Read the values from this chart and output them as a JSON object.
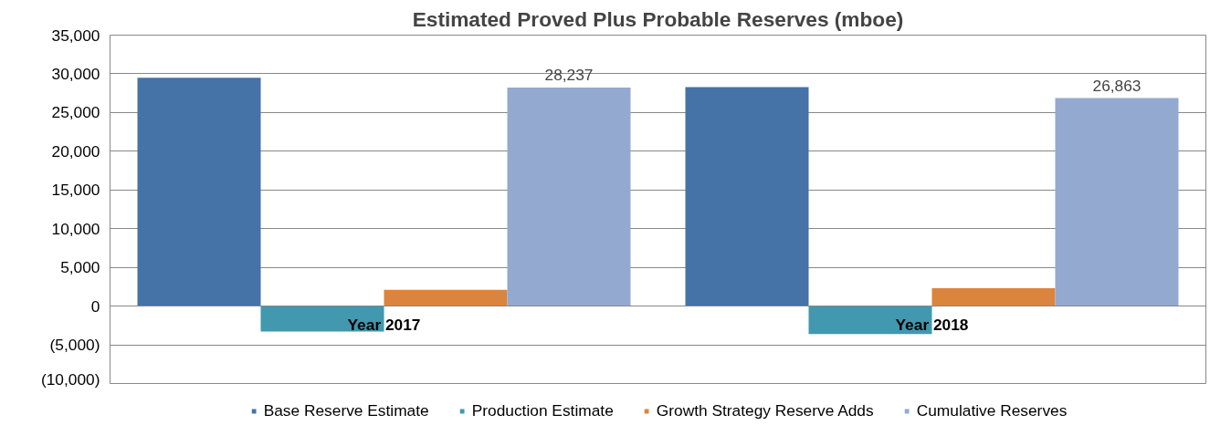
{
  "chart_data": {
    "type": "bar",
    "title": "Estimated Proved Plus Probable Reserves (mboe)",
    "categories": [
      "Year 2017",
      "Year 2018"
    ],
    "series": [
      {
        "name": "Base Reserve Estimate",
        "color": "#4572a7",
        "values": [
          29500,
          28300
        ]
      },
      {
        "name": "Production Estimate",
        "color": "#4198af",
        "values": [
          -3300,
          -3600
        ]
      },
      {
        "name": "Growth Strategy Reserve Adds",
        "color": "#db843d",
        "values": [
          2100,
          2300
        ],
        "value_labels": [
          null,
          null
        ]
      },
      {
        "name": "Cumulative Reserves",
        "color": "#93a9cf",
        "values": [
          28237,
          26863
        ],
        "value_labels": [
          "28,237",
          "26,863"
        ]
      }
    ],
    "ylim": [
      -10000,
      35000
    ],
    "yticks": [
      {
        "value": -10000,
        "label": "(10,000)"
      },
      {
        "value": -5000,
        "label": "(5,000)"
      },
      {
        "value": 0,
        "label": "0"
      },
      {
        "value": 5000,
        "label": "5,000"
      },
      {
        "value": 10000,
        "label": "10,000"
      },
      {
        "value": 15000,
        "label": "15,000"
      },
      {
        "value": 20000,
        "label": "20,000"
      },
      {
        "value": 25000,
        "label": "25,000"
      },
      {
        "value": 30000,
        "label": "30,000"
      },
      {
        "value": 35000,
        "label": "35,000"
      }
    ],
    "grid": "y",
    "legend": "bottom"
  }
}
